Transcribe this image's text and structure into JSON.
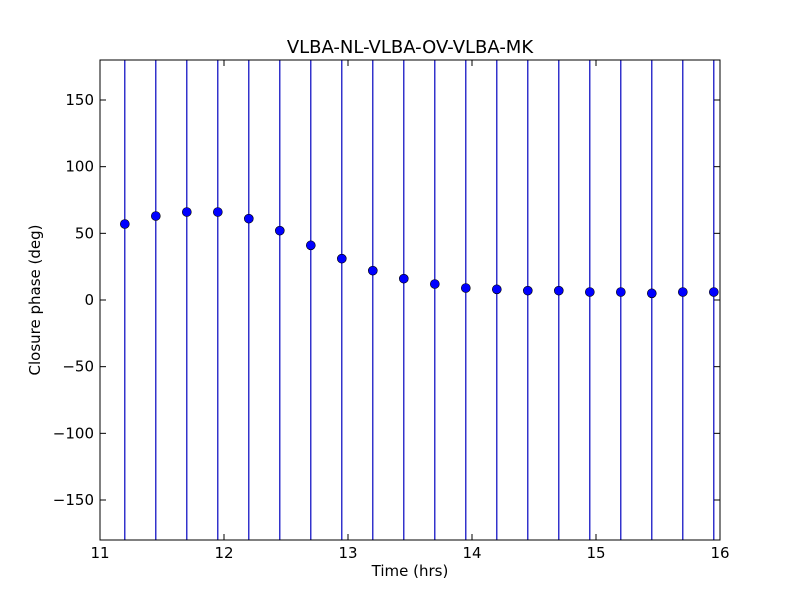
{
  "chart_data": {
    "type": "scatter",
    "title": "VLBA-NL-VLBA-OV-VLBA-MK",
    "xlabel": "Time (hrs)",
    "ylabel": "Closure phase (deg)",
    "xlim": [
      11,
      16
    ],
    "ylim": [
      -180,
      180
    ],
    "xticks": [
      11,
      12,
      13,
      14,
      15,
      16
    ],
    "yticks": [
      -150,
      -100,
      -50,
      0,
      50,
      100,
      150
    ],
    "grid": false,
    "marker_color": "#0000ff",
    "errorbar_color": "#0000bf",
    "errorbars_span_full_range": true,
    "points": [
      {
        "x": 11.2,
        "y": 57
      },
      {
        "x": 11.45,
        "y": 63
      },
      {
        "x": 11.7,
        "y": 66
      },
      {
        "x": 11.95,
        "y": 66
      },
      {
        "x": 12.2,
        "y": 61
      },
      {
        "x": 12.45,
        "y": 52
      },
      {
        "x": 12.7,
        "y": 41
      },
      {
        "x": 12.95,
        "y": 31
      },
      {
        "x": 13.2,
        "y": 22
      },
      {
        "x": 13.45,
        "y": 16
      },
      {
        "x": 13.7,
        "y": 12
      },
      {
        "x": 13.95,
        "y": 9
      },
      {
        "x": 14.2,
        "y": 8
      },
      {
        "x": 14.45,
        "y": 7
      },
      {
        "x": 14.7,
        "y": 7
      },
      {
        "x": 14.95,
        "y": 6
      },
      {
        "x": 15.2,
        "y": 6
      },
      {
        "x": 15.45,
        "y": 5
      },
      {
        "x": 15.7,
        "y": 6
      },
      {
        "x": 15.95,
        "y": 6
      }
    ]
  }
}
